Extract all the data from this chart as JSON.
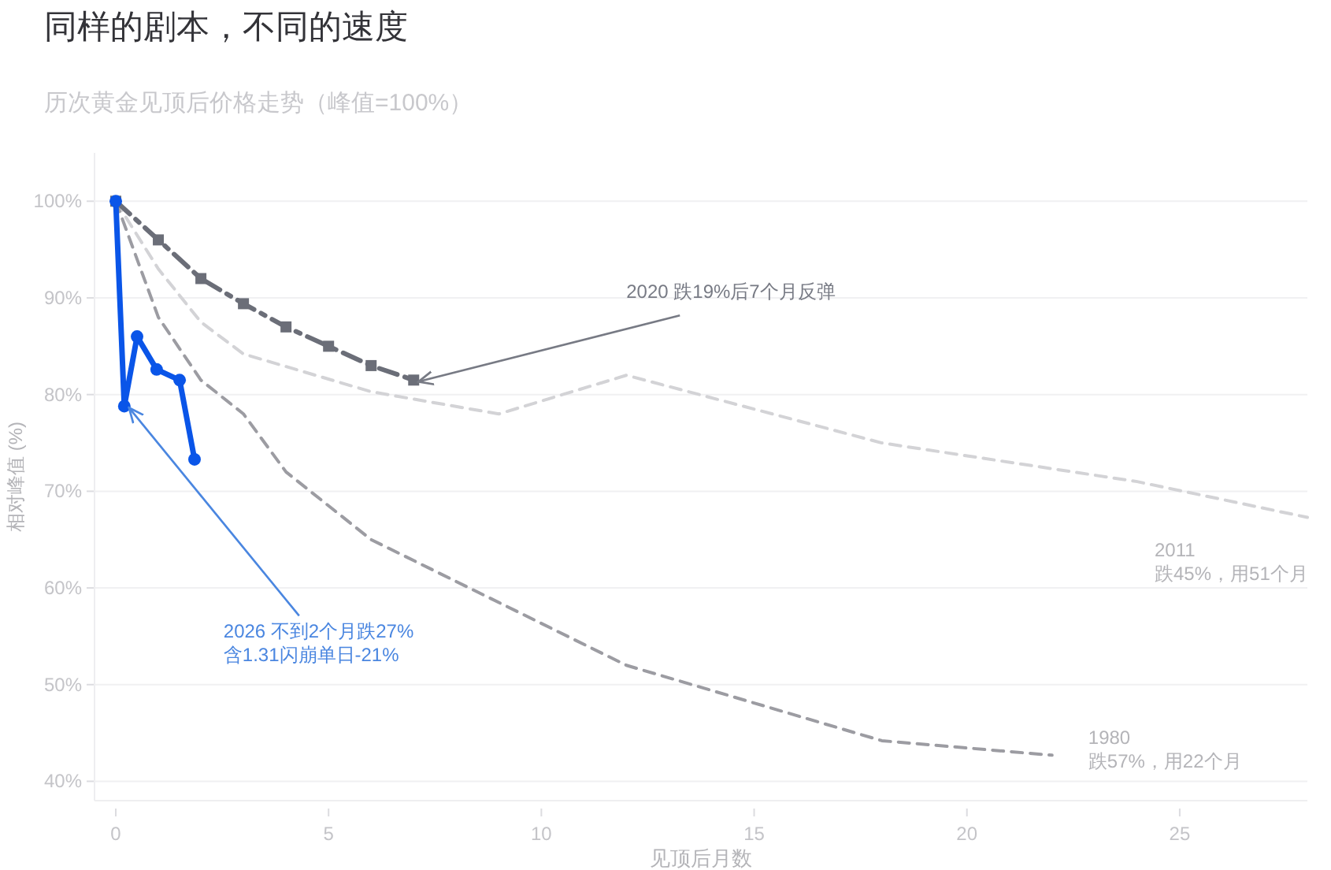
{
  "chart_data": {
    "type": "line",
    "title": "同样的剧本，不同的速度",
    "subtitle": "历次黄金见顶后价格走势（峰值=100%）",
    "xlabel": "见顶后月数",
    "ylabel": "相对峰值 (%)",
    "xlim": [
      -0.5,
      28
    ],
    "xticks": [
      0,
      5,
      10,
      15,
      20,
      25
    ],
    "ylim": [
      38,
      105
    ],
    "yticks": [
      {
        "value": 40,
        "label": "40%"
      },
      {
        "value": 50,
        "label": "50%"
      },
      {
        "value": 60,
        "label": "60%"
      },
      {
        "value": 70,
        "label": "70%"
      },
      {
        "value": 80,
        "label": "80%"
      },
      {
        "value": 90,
        "label": "90%"
      },
      {
        "value": 100,
        "label": "100%"
      }
    ],
    "grid": "y",
    "series": [
      {
        "color": "#d3d3d6",
        "line_style": "dashed",
        "marker": "none",
        "x": [
          0,
          1,
          2,
          3,
          6,
          9,
          12,
          18,
          24,
          28
        ],
        "values": [
          100,
          93,
          87.5,
          84.2,
          80.3,
          78,
          82,
          75,
          71,
          67.3
        ]
      },
      {
        "color": "#9c9ca2",
        "line_style": "dashed",
        "marker": "none",
        "x": [
          0,
          1,
          2,
          3,
          4,
          6,
          12,
          18,
          22
        ],
        "values": [
          100,
          88,
          81.5,
          78,
          72,
          65,
          52,
          44.2,
          42.7
        ]
      },
      {
        "color": "#6b6e78",
        "line_style": "dashdot",
        "marker": "square",
        "x": [
          0,
          1,
          2,
          3,
          4,
          5,
          6,
          7
        ],
        "values": [
          100,
          96,
          92,
          89.4,
          87,
          85,
          83,
          81.5
        ]
      },
      {
        "color": "#0a55e8",
        "line_style": "solid",
        "marker": "circle",
        "x": [
          0,
          0.2,
          0.5,
          0.96,
          1.5,
          1.85
        ],
        "values": [
          100,
          78.8,
          86,
          82.6,
          81.5,
          73.3
        ]
      }
    ],
    "annotations": [
      {
        "text": "2020  跌19%后7个月反弹",
        "x": 7,
        "y": 81.5
      },
      {
        "text": "2026  不到2个月跌27%\n含1.31闪崩单日-21%",
        "x": 0.2,
        "y": 78.8
      },
      "2011\n跌45%，用51个月",
      {
        "text": "1980\n跌57%，用22个月",
        "x": 22,
        "y": 42.7
      }
    ]
  }
}
